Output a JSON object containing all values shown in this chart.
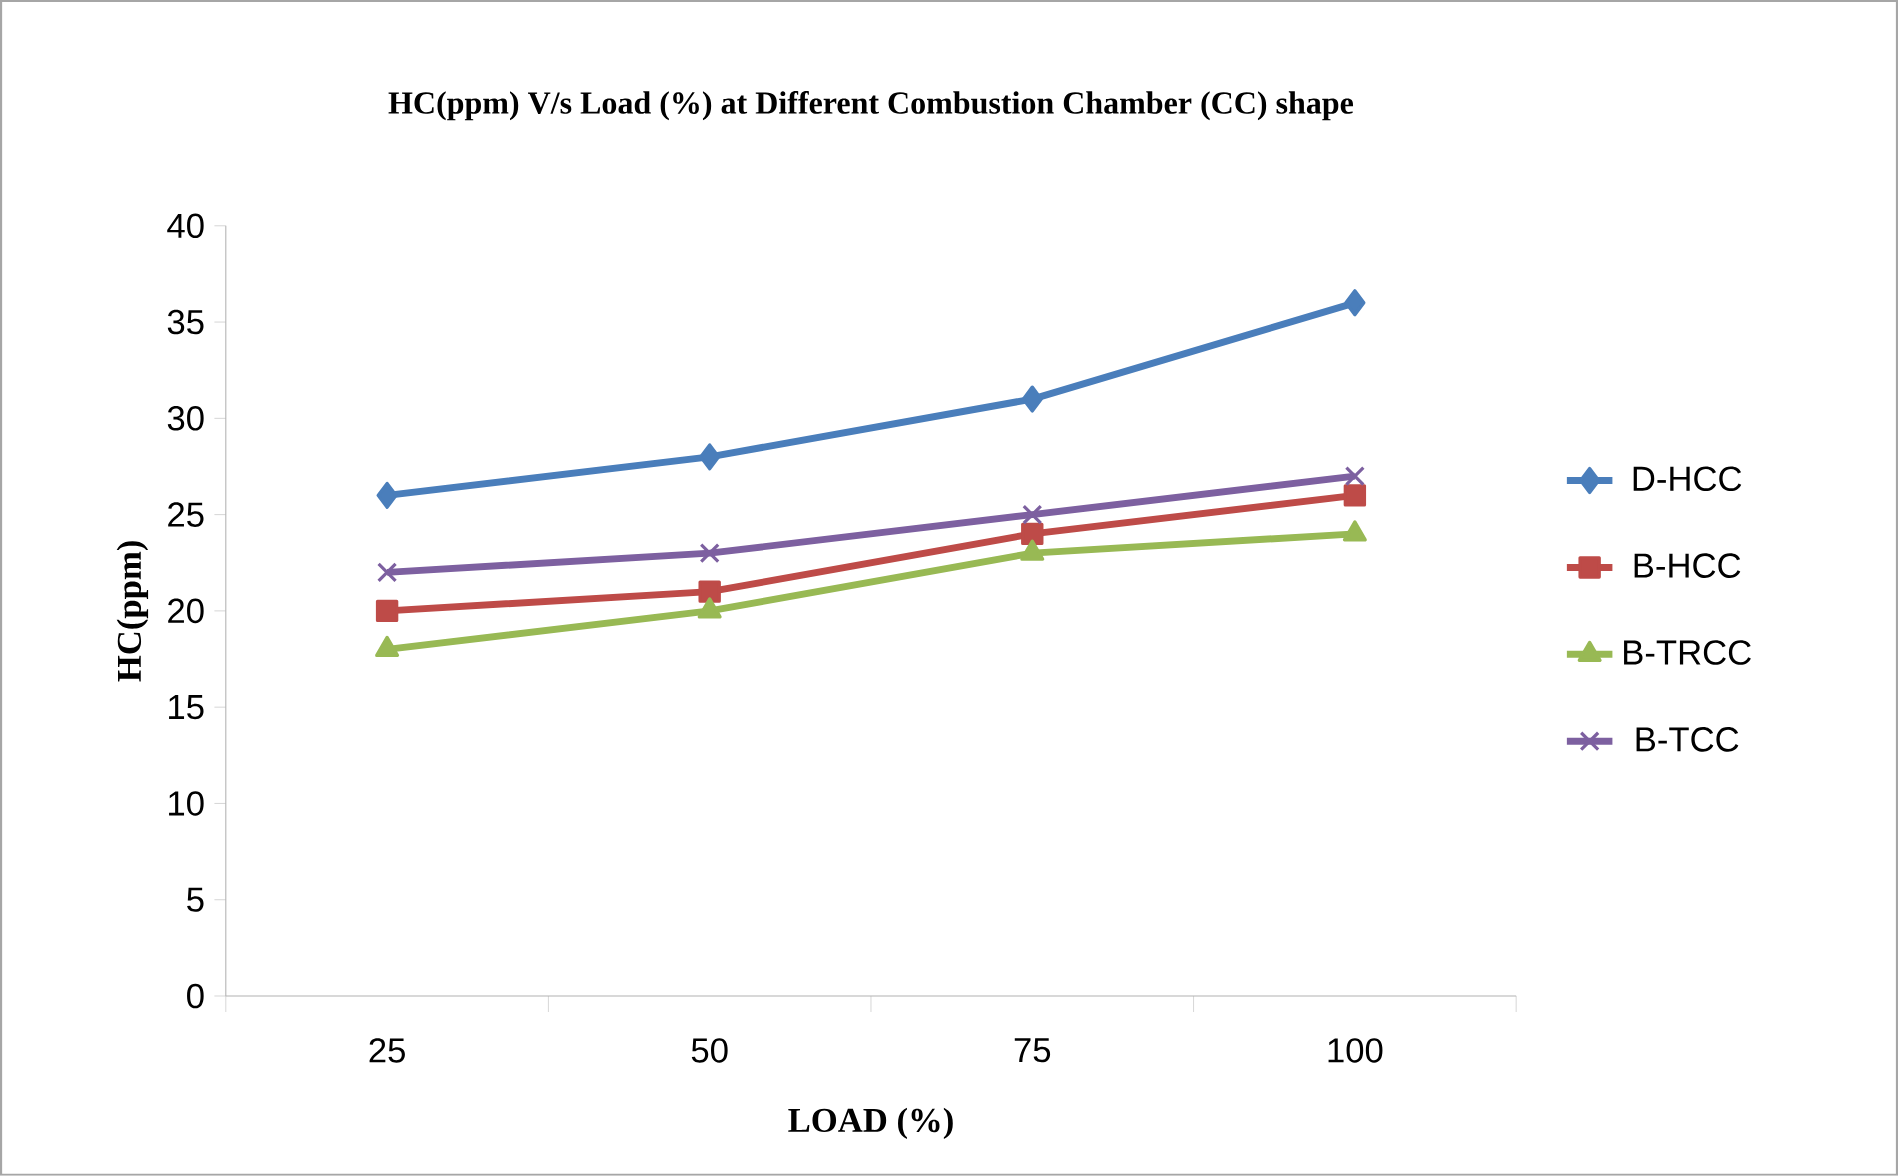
{
  "chart_data": {
    "type": "line",
    "title": "HC(ppm) V/s Load (%) at Different  Combustion Chamber (CC) shape",
    "xlabel": "LOAD (%)",
    "ylabel": "HC(ppm)",
    "categories": [
      "25",
      "50",
      "75",
      "100"
    ],
    "series": [
      {
        "name": "D-HCC",
        "color": "#4a7ebb",
        "marker": "diamond",
        "values": [
          26,
          28,
          31,
          36
        ]
      },
      {
        "name": "B-HCC",
        "color": "#be4b48",
        "marker": "square",
        "values": [
          20,
          21,
          24,
          26
        ]
      },
      {
        "name": "B-TRCC",
        "color": "#98b954",
        "marker": "triangle",
        "values": [
          18,
          20,
          23,
          24
        ]
      },
      {
        "name": "B-TCC",
        "color": "#7d60a0",
        "marker": "cross",
        "values": [
          22,
          23,
          25,
          27
        ]
      }
    ],
    "ylim": [
      0,
      40
    ],
    "yticks": [
      0,
      5,
      10,
      15,
      20,
      25,
      30,
      35,
      40
    ],
    "grid": false,
    "legend": "right",
    "line_style": "solid"
  }
}
